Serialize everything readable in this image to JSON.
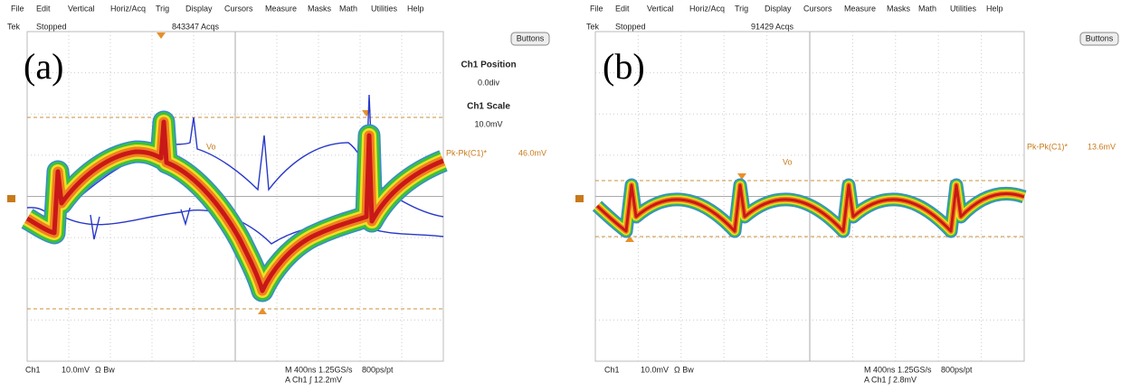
{
  "menu": [
    "File",
    "Edit",
    "Vertical",
    "Horiz/Acq",
    "Trig",
    "Display",
    "Cursors",
    "Measure",
    "Masks",
    "Math",
    "Utilities",
    "Help"
  ],
  "panels": [
    {
      "label": "(a)",
      "status": {
        "brand": "Tek",
        "state": "Stopped",
        "acquisitions": "843347 Acqs"
      },
      "button": "Buttons",
      "side_info": [
        {
          "title": "Ch1 Position",
          "value": "0.0div"
        },
        {
          "title": "Ch1 Scale",
          "value": "10.0mV"
        }
      ],
      "trace_label": "Vo",
      "measurement": {
        "name": "Pk-Pk(C1)*",
        "value": "46.0mV"
      },
      "footer": {
        "channel": "Ch1",
        "scale": "10.0mV",
        "coupling": "Ω Bw",
        "timebase": "M 400ns 1.25GS/s",
        "resolution": "800ps/pt",
        "trigger": "A  Ch1  ∫  12.2mV"
      }
    },
    {
      "label": "(b)",
      "status": {
        "brand": "Tek",
        "state": "Stopped",
        "acquisitions": "91429 Acqs"
      },
      "button": "Buttons",
      "trace_label": "Vo",
      "measurement": {
        "name": "Pk-Pk(C1)*",
        "value": "13.6mV"
      },
      "footer": {
        "channel": "Ch1",
        "scale": "10.0mV",
        "coupling": "Ω Bw",
        "timebase": "M 400ns 1.25GS/s",
        "resolution": "800ps/pt",
        "trigger": "A  Ch1  ∫  2.8mV"
      }
    }
  ]
}
